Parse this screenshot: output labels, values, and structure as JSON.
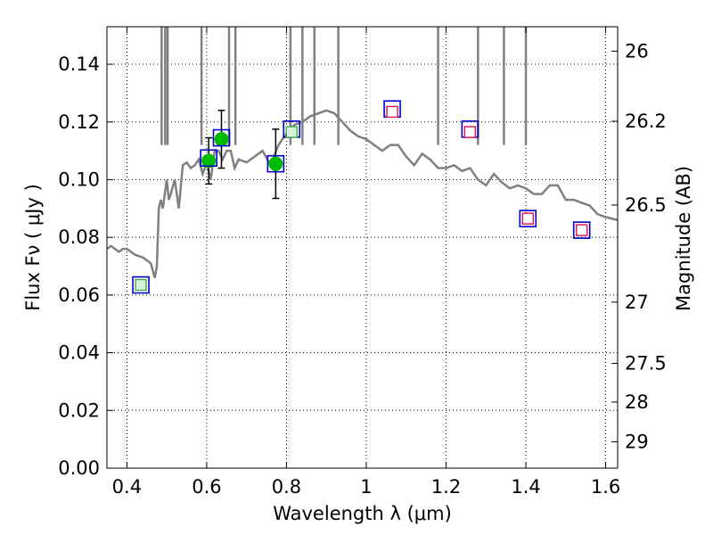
{
  "chart_data": {
    "type": "scatter",
    "xlabel": "Wavelength  λ (μm)",
    "ylabel": "Flux  Fν  ( μJy )",
    "y2label": "Magnitude (AB)",
    "xlim": [
      0.35,
      1.63
    ],
    "ylim": [
      0.0,
      0.153
    ],
    "grid": true,
    "x_ticks": [
      0.4,
      0.6,
      0.8,
      1.0,
      1.2,
      1.4,
      1.6
    ],
    "x_tick_labels": [
      "0.4",
      "0.6",
      "0.8",
      "1",
      "1.2",
      "1.4",
      "1.6"
    ],
    "y_ticks": [
      0.0,
      0.02,
      0.04,
      0.06,
      0.08,
      0.1,
      0.12,
      0.14
    ],
    "y_tick_labels": [
      "0.00",
      "0.02",
      "0.04",
      "0.06",
      "0.08",
      "0.10",
      "0.12",
      "0.14"
    ],
    "y2_ticks": [
      26,
      26.2,
      26.5,
      27,
      27.5,
      28,
      29
    ],
    "y2_tick_labels": [
      "26",
      "26.2",
      "26.5",
      "27",
      "27.5",
      "28",
      "29"
    ],
    "model_spectrum": {
      "color": "#808080",
      "x": [
        0.35,
        0.36,
        0.37,
        0.38,
        0.39,
        0.4,
        0.42,
        0.44,
        0.46,
        0.47,
        0.475,
        0.48,
        0.485,
        0.49,
        0.495,
        0.5,
        0.505,
        0.51,
        0.52,
        0.53,
        0.54,
        0.55,
        0.56,
        0.57,
        0.58,
        0.59,
        0.6,
        0.61,
        0.62,
        0.63,
        0.64,
        0.65,
        0.66,
        0.67,
        0.68,
        0.7,
        0.72,
        0.74,
        0.76,
        0.78,
        0.8,
        0.82,
        0.84,
        0.86,
        0.88,
        0.9,
        0.92,
        0.94,
        0.96,
        0.98,
        1.0,
        1.02,
        1.04,
        1.06,
        1.08,
        1.1,
        1.12,
        1.14,
        1.16,
        1.18,
        1.2,
        1.22,
        1.24,
        1.26,
        1.28,
        1.3,
        1.32,
        1.34,
        1.36,
        1.38,
        1.4,
        1.42,
        1.44,
        1.46,
        1.48,
        1.5,
        1.52,
        1.54,
        1.56,
        1.58,
        1.6,
        1.63
      ],
      "y": [
        0.076,
        0.077,
        0.076,
        0.075,
        0.076,
        0.076,
        0.074,
        0.073,
        0.071,
        0.066,
        0.07,
        0.09,
        0.093,
        0.09,
        0.095,
        0.1,
        0.093,
        0.095,
        0.1,
        0.09,
        0.105,
        0.106,
        0.104,
        0.105,
        0.107,
        0.102,
        0.106,
        0.1,
        0.11,
        0.11,
        0.107,
        0.11,
        0.11,
        0.104,
        0.107,
        0.106,
        0.108,
        0.11,
        0.105,
        0.112,
        0.116,
        0.119,
        0.12,
        0.122,
        0.123,
        0.124,
        0.123,
        0.12,
        0.117,
        0.115,
        0.114,
        0.112,
        0.11,
        0.112,
        0.112,
        0.108,
        0.105,
        0.109,
        0.107,
        0.104,
        0.104,
        0.105,
        0.103,
        0.104,
        0.1,
        0.098,
        0.102,
        0.099,
        0.097,
        0.098,
        0.097,
        0.095,
        0.095,
        0.098,
        0.098,
        0.093,
        0.093,
        0.092,
        0.091,
        0.088,
        0.087,
        0.086
      ]
    },
    "series": [
      {
        "marker": "filled-circle-with-errorbars",
        "color": "#00bb00",
        "x": [
          0.605,
          0.637,
          0.773
        ],
        "y": [
          0.1065,
          0.114,
          0.1055
        ],
        "err": [
          0.008,
          0.01,
          0.012
        ]
      },
      {
        "marker": "open-square-model",
        "color": "#0000cc",
        "x": [
          0.435,
          0.605,
          0.637,
          0.773,
          0.813,
          1.065,
          1.26,
          1.405,
          1.54
        ],
        "y": [
          0.0635,
          0.1075,
          0.1145,
          0.1055,
          0.1175,
          0.1245,
          0.1175,
          0.0865,
          0.0825
        ]
      },
      {
        "marker": "small-square-green",
        "color": "#44aa44",
        "x": [
          0.435,
          0.813
        ],
        "y": [
          0.0635,
          0.1165
        ]
      },
      {
        "marker": "small-square-red",
        "color": "#dd1155",
        "x": [
          1.065,
          1.26,
          1.405,
          1.54
        ],
        "y": [
          0.1235,
          0.1165,
          0.0865,
          0.0825
        ]
      }
    ]
  }
}
